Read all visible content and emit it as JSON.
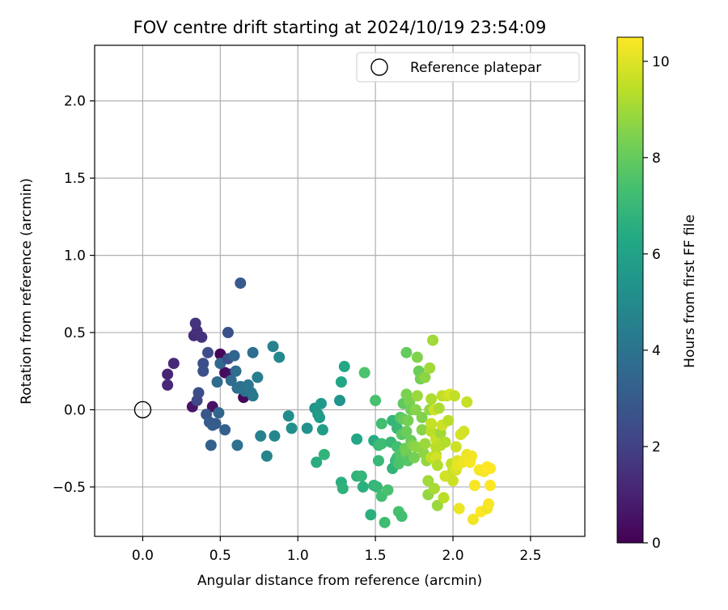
{
  "chart_data": {
    "type": "scatter",
    "title": "FOV centre drift starting at 2024/10/19 23:54:09",
    "xlabel": "Angular distance from reference (arcmin)",
    "ylabel": "Rotation from reference (arcmin)",
    "xlim": [
      -0.31,
      2.85
    ],
    "ylim": [
      -0.82,
      2.36
    ],
    "xticks": [
      0.0,
      0.5,
      1.0,
      1.5,
      2.0,
      2.5
    ],
    "xtick_labels": [
      "0.0",
      "0.5",
      "1.0",
      "1.5",
      "2.0",
      "2.5"
    ],
    "yticks": [
      -0.5,
      0.0,
      0.5,
      1.0,
      1.5,
      2.0
    ],
    "ytick_labels": [
      "−0.5",
      "0.0",
      "0.5",
      "1.0",
      "1.5",
      "2.0"
    ],
    "grid": true,
    "legend": {
      "placement": "top-right",
      "entries": [
        "Reference platepar"
      ]
    },
    "reference_point": {
      "x": 0.0,
      "y": 0.0,
      "label": "Reference platepar"
    },
    "colorbar": {
      "label": "Hours from first FF file",
      "colormap": "viridis",
      "range": [
        0,
        10.5
      ],
      "ticks": [
        0,
        2,
        4,
        6,
        8,
        10
      ],
      "tick_labels": [
        "0",
        "2",
        "4",
        "6",
        "8",
        "10"
      ]
    },
    "points": [
      [
        0.5,
        0.36,
        0.1
      ],
      [
        0.53,
        0.24,
        0.3
      ],
      [
        0.65,
        0.08,
        0.2
      ],
      [
        0.45,
        0.02,
        0.5
      ],
      [
        0.32,
        0.02,
        0.6
      ],
      [
        0.56,
        0.23,
        0.4
      ],
      [
        0.33,
        0.48,
        1.3
      ],
      [
        0.35,
        0.51,
        1.4
      ],
      [
        0.34,
        0.56,
        1.6
      ],
      [
        0.38,
        0.47,
        1.5
      ],
      [
        0.2,
        0.3,
        1.2
      ],
      [
        0.16,
        0.23,
        1.1
      ],
      [
        0.16,
        0.16,
        1.2
      ],
      [
        0.42,
        0.37,
        2.4
      ],
      [
        0.39,
        0.3,
        2.5
      ],
      [
        0.39,
        0.25,
        2.6
      ],
      [
        0.36,
        0.11,
        2.5
      ],
      [
        0.35,
        0.06,
        2.3
      ],
      [
        0.41,
        -0.03,
        2.8
      ],
      [
        0.43,
        -0.08,
        3.0
      ],
      [
        0.45,
        -0.1,
        3.1
      ],
      [
        0.47,
        -0.09,
        3.0
      ],
      [
        0.44,
        -0.23,
        3.2
      ],
      [
        0.49,
        -0.02,
        3.4
      ],
      [
        0.53,
        -0.13,
        3.2
      ],
      [
        0.5,
        0.3,
        3.5
      ],
      [
        0.48,
        0.18,
        3.6
      ],
      [
        0.55,
        0.33,
        2.7
      ],
      [
        0.59,
        0.35,
        3.4
      ],
      [
        0.55,
        0.5,
        2.6
      ],
      [
        0.63,
        0.82,
        2.9
      ],
      [
        0.57,
        0.19,
        3.7
      ],
      [
        0.6,
        0.25,
        3.8
      ],
      [
        0.61,
        0.14,
        3.8
      ],
      [
        0.63,
        0.15,
        3.9
      ],
      [
        0.66,
        0.12,
        4.0
      ],
      [
        0.68,
        0.16,
        4.1
      ],
      [
        0.7,
        0.11,
        4.1
      ],
      [
        0.71,
        0.09,
        4.2
      ],
      [
        0.71,
        0.37,
        3.8
      ],
      [
        0.74,
        0.21,
        4.4
      ],
      [
        0.61,
        -0.23,
        3.9
      ],
      [
        0.76,
        -0.17,
        4.6
      ],
      [
        0.8,
        -0.3,
        4.7
      ],
      [
        0.84,
        0.41,
        4.6
      ],
      [
        0.85,
        -0.17,
        4.8
      ],
      [
        0.88,
        0.34,
        4.9
      ],
      [
        0.94,
        -0.04,
        5.1
      ],
      [
        0.96,
        -0.12,
        5.2
      ],
      [
        1.06,
        -0.12,
        5.3
      ],
      [
        1.11,
        0.01,
        5.5
      ],
      [
        1.13,
        -0.03,
        5.6
      ],
      [
        1.14,
        -0.05,
        5.7
      ],
      [
        1.15,
        0.04,
        5.6
      ],
      [
        1.16,
        -0.13,
        5.8
      ],
      [
        1.12,
        -0.34,
        6.5
      ],
      [
        1.17,
        -0.29,
        6.8
      ],
      [
        1.27,
        0.06,
        5.4
      ],
      [
        1.28,
        0.18,
        6.2
      ],
      [
        1.3,
        0.28,
        6.3
      ],
      [
        1.28,
        -0.47,
        6.6
      ],
      [
        1.29,
        -0.51,
        6.7
      ],
      [
        1.38,
        -0.19,
        6.2
      ],
      [
        1.38,
        -0.43,
        6.8
      ],
      [
        1.41,
        -0.43,
        6.9
      ],
      [
        1.42,
        -0.5,
        6.6
      ],
      [
        1.43,
        0.24,
        7.5
      ],
      [
        1.47,
        -0.68,
        6.6
      ],
      [
        1.49,
        -0.2,
        6.4
      ],
      [
        1.49,
        -0.49,
        6.9
      ],
      [
        1.51,
        -0.5,
        7.0
      ],
      [
        1.5,
        0.06,
        7.4
      ],
      [
        1.52,
        -0.33,
        7.0
      ],
      [
        1.52,
        -0.23,
        7.1
      ],
      [
        1.54,
        -0.22,
        7.2
      ],
      [
        1.54,
        -0.09,
        7.3
      ],
      [
        1.54,
        -0.56,
        7.3
      ],
      [
        1.56,
        -0.73,
        7.2
      ],
      [
        1.58,
        -0.52,
        7.4
      ],
      [
        1.6,
        -0.21,
        7.0
      ],
      [
        1.61,
        -0.07,
        6.9
      ],
      [
        1.61,
        -0.38,
        6.8
      ],
      [
        1.63,
        -0.33,
        7.0
      ],
      [
        1.64,
        -0.12,
        7.0
      ],
      [
        1.64,
        -0.24,
        7.3
      ],
      [
        1.64,
        -0.31,
        7.2
      ],
      [
        1.65,
        -0.35,
        7.5
      ],
      [
        1.65,
        -0.66,
        7.4
      ],
      [
        1.66,
        -0.29,
        7.6
      ],
      [
        1.66,
        -0.05,
        7.7
      ],
      [
        1.67,
        -0.16,
        7.8
      ],
      [
        1.67,
        -0.69,
        7.3
      ],
      [
        1.68,
        0.04,
        7.9
      ],
      [
        1.68,
        -0.06,
        8.0
      ],
      [
        1.69,
        -0.25,
        8.1
      ],
      [
        1.7,
        -0.14,
        8.1
      ],
      [
        1.7,
        -0.28,
        8.2
      ],
      [
        1.7,
        0.1,
        8.4
      ],
      [
        1.7,
        0.37,
        8.0
      ],
      [
        1.71,
        -0.33,
        7.7
      ],
      [
        1.71,
        -0.07,
        8.3
      ],
      [
        1.72,
        0.05,
        8.4
      ],
      [
        1.73,
        -0.2,
        8.1
      ],
      [
        1.73,
        0.0,
        8.2
      ],
      [
        1.74,
        -0.23,
        8.5
      ],
      [
        1.75,
        -0.31,
        8.3
      ],
      [
        1.76,
        -0.24,
        8.7
      ],
      [
        1.76,
        0.0,
        8.6
      ],
      [
        1.77,
        0.34,
        8.5
      ],
      [
        1.77,
        0.09,
        8.9
      ],
      [
        1.78,
        0.25,
        8.1
      ],
      [
        1.79,
        0.2,
        8.3
      ],
      [
        1.8,
        -0.13,
        8.6
      ],
      [
        1.8,
        -0.05,
        8.5
      ],
      [
        1.81,
        -0.28,
        8.7
      ],
      [
        1.82,
        0.21,
        8.7
      ],
      [
        1.82,
        -0.22,
        8.9
      ],
      [
        1.83,
        -0.33,
        8.8
      ],
      [
        1.84,
        -0.46,
        9.0
      ],
      [
        1.84,
        -0.55,
        8.8
      ],
      [
        1.85,
        0.0,
        8.8
      ],
      [
        1.85,
        0.27,
        9.0
      ],
      [
        1.86,
        0.07,
        9.2
      ],
      [
        1.86,
        -0.14,
        9.4
      ],
      [
        1.86,
        -0.31,
        9.5
      ],
      [
        1.86,
        -0.09,
        9.6
      ],
      [
        1.87,
        0.45,
        9.0
      ],
      [
        1.88,
        -0.51,
        9.1
      ],
      [
        1.88,
        0.0,
        9.7
      ],
      [
        1.89,
        -0.29,
        9.3
      ],
      [
        1.89,
        -0.24,
        9.4
      ],
      [
        1.89,
        -0.19,
        9.6
      ],
      [
        1.89,
        -0.31,
        9.8
      ],
      [
        1.9,
        -0.36,
        9.3
      ],
      [
        1.9,
        -0.62,
        8.9
      ],
      [
        1.91,
        0.01,
        9.2
      ],
      [
        1.92,
        -0.23,
        9.4
      ],
      [
        1.92,
        -0.15,
        9.0
      ],
      [
        1.93,
        0.09,
        9.5
      ],
      [
        1.93,
        -0.1,
        9.7
      ],
      [
        1.94,
        -0.57,
        9.4
      ],
      [
        1.95,
        -0.21,
        9.3
      ],
      [
        1.95,
        -0.43,
        9.8
      ],
      [
        1.96,
        0.09,
        9.6
      ],
      [
        1.97,
        -0.07,
        9.4
      ],
      [
        1.98,
        0.1,
        9.9
      ],
      [
        1.99,
        -0.35,
        9.5
      ],
      [
        2.0,
        -0.39,
        9.6
      ],
      [
        2.0,
        -0.46,
        9.7
      ],
      [
        2.01,
        0.09,
        9.5
      ],
      [
        2.02,
        -0.24,
        9.7
      ],
      [
        2.02,
        -0.39,
        9.9
      ],
      [
        2.03,
        -0.33,
        10.0
      ],
      [
        2.03,
        -0.36,
        10.1
      ],
      [
        2.04,
        -0.64,
        10.2
      ],
      [
        2.05,
        -0.16,
        9.9
      ],
      [
        2.06,
        -0.34,
        10.2
      ],
      [
        2.07,
        -0.14,
        9.8
      ],
      [
        2.09,
        0.05,
        9.6
      ],
      [
        2.09,
        -0.29,
        10.2
      ],
      [
        2.1,
        -0.32,
        10.3
      ],
      [
        2.11,
        -0.34,
        10.4
      ],
      [
        2.12,
        -0.3,
        10.3
      ],
      [
        2.13,
        -0.71,
        10.3
      ],
      [
        2.14,
        -0.49,
        10.4
      ],
      [
        2.17,
        -0.39,
        10.4
      ],
      [
        2.18,
        -0.66,
        10.5
      ],
      [
        2.2,
        -0.4,
        10.4
      ],
      [
        2.22,
        -0.37,
        10.5
      ],
      [
        2.22,
        -0.64,
        10.3
      ],
      [
        2.23,
        -0.61,
        10.4
      ],
      [
        2.24,
        -0.49,
        10.5
      ],
      [
        2.24,
        -0.38,
        10.5
      ]
    ]
  }
}
